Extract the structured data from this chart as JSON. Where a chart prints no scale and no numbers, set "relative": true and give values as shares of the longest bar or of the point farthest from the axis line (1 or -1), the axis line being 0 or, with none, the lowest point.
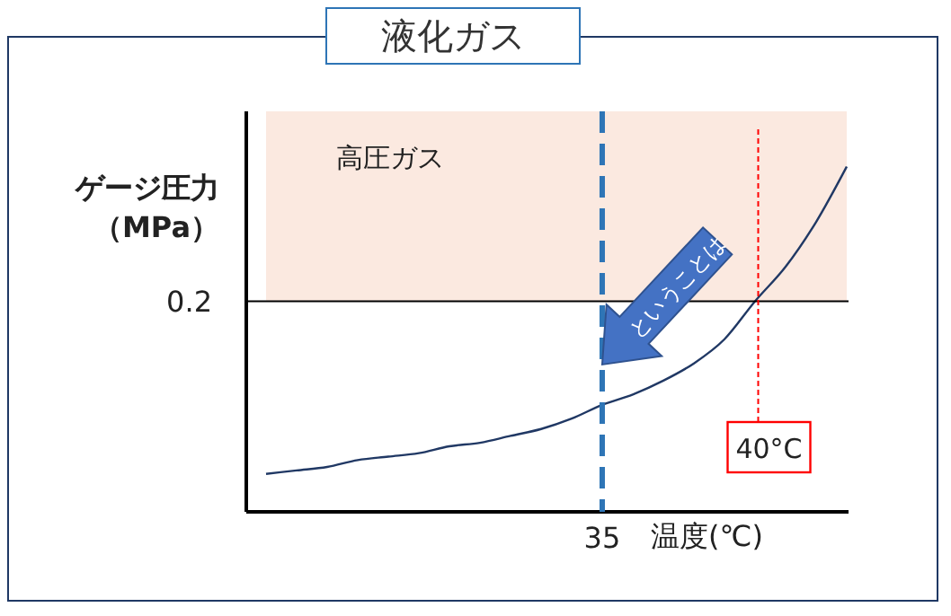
{
  "chart_data": {
    "type": "line",
    "relative": true,
    "title": "液化ガス",
    "xlabel": "温度(℃)",
    "ylabel": "ゲージ圧力（MPa）",
    "categories": [
      null,
      null,
      null,
      null,
      null,
      null,
      null,
      null,
      null,
      null,
      null,
      null,
      null,
      null,
      null,
      null,
      null,
      null,
      null,
      null
    ],
    "series": [
      {
        "color": "#203864",
        "values": [
          0.11,
          0.12,
          0.13,
          0.15,
          0.16,
          0.17,
          0.19,
          0.2,
          0.22,
          0.24,
          0.27,
          0.31,
          0.34,
          0.38,
          0.43,
          0.5,
          0.61,
          0.71,
          0.84,
          1
        ]
      }
    ],
    "ref_lines": [
      {
        "axis": "y",
        "value": 0.61,
        "color": "#000000"
      }
    ],
    "bands": [
      {
        "axis": "y",
        "from": 0.61,
        "to": 1.16,
        "label": "高圧ガス",
        "color": "#fbe9e0"
      }
    ],
    "annotations": [
      "0.2",
      "35",
      "40°C",
      "ということは"
    ]
  }
}
